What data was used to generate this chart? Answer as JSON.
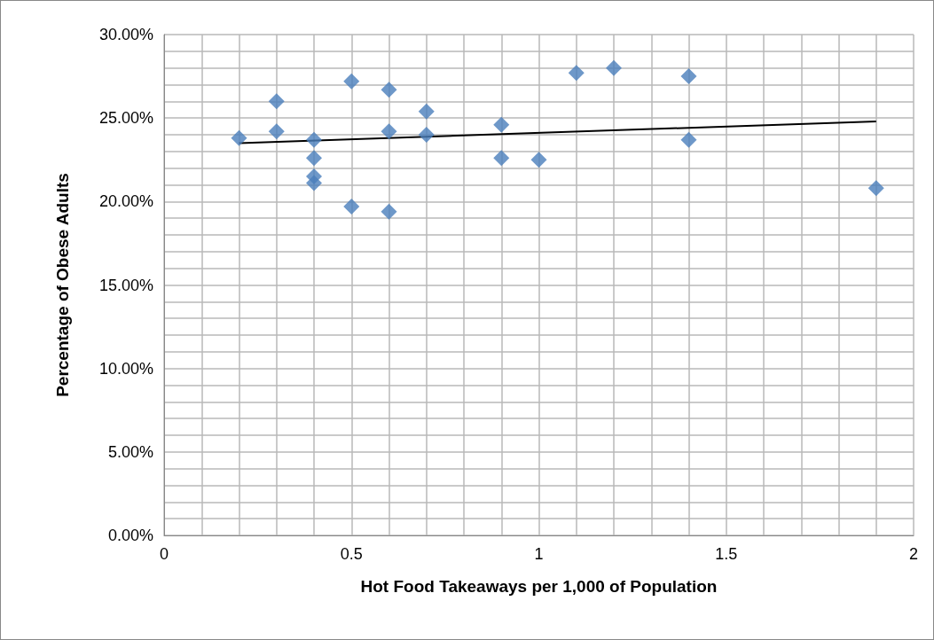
{
  "chart_data": {
    "type": "scatter",
    "xlabel": "Hot Food Takeaways per 1,000 of Population",
    "ylabel": "Percentage of Obese Adults",
    "series": [
      {
        "color": "#4a7ebb",
        "marker": "diamond",
        "x": [
          0.2,
          0.3,
          0.3,
          0.4,
          0.4,
          0.4,
          0.4,
          0.5,
          0.5,
          0.6,
          0.6,
          0.6,
          0.7,
          0.7,
          0.9,
          0.9,
          1.0,
          1.1,
          1.2,
          1.4,
          1.4,
          1.9
        ],
        "values": [
          23.8,
          26.0,
          24.2,
          23.7,
          22.6,
          21.5,
          21.1,
          27.2,
          19.7,
          26.7,
          24.2,
          19.4,
          25.4,
          24.0,
          24.6,
          22.6,
          22.5,
          27.7,
          28.0,
          27.5,
          23.7,
          20.8
        ]
      },
      {
        "type": "line",
        "color": "#000000",
        "marker": "none",
        "x": [
          0.2,
          1.9
        ],
        "values": [
          23.5,
          24.8
        ]
      }
    ],
    "xlim": [
      0,
      2
    ],
    "ylim": [
      0,
      30
    ],
    "xticks": [
      0,
      {
        "value": 0.1,
        "label": null
      },
      {
        "value": 0.2,
        "label": null
      },
      {
        "value": 0.3,
        "label": null
      },
      {
        "value": 0.4,
        "label": null
      },
      0.5,
      {
        "value": 0.6,
        "label": null
      },
      {
        "value": 0.7,
        "label": null
      },
      {
        "value": 0.8,
        "label": null
      },
      {
        "value": 0.9,
        "label": null
      },
      1,
      {
        "value": 1.1,
        "label": null
      },
      {
        "value": 1.2,
        "label": null
      },
      {
        "value": 1.3,
        "label": null
      },
      {
        "value": 1.4,
        "label": null
      },
      1.5,
      {
        "value": 1.6,
        "label": null
      },
      {
        "value": 1.7,
        "label": null
      },
      {
        "value": 1.8,
        "label": null
      },
      {
        "value": 1.9,
        "label": null
      },
      2
    ],
    "yticks": [
      {
        "value": 0,
        "label": "0.00%"
      },
      {
        "value": 1,
        "label": null
      },
      {
        "value": 2,
        "label": null
      },
      {
        "value": 3,
        "label": null
      },
      {
        "value": 4,
        "label": null
      },
      {
        "value": 5,
        "label": "5.00%"
      },
      {
        "value": 6,
        "label": null
      },
      {
        "value": 7,
        "label": null
      },
      {
        "value": 8,
        "label": null
      },
      {
        "value": 9,
        "label": null
      },
      {
        "value": 10,
        "label": "10.00%"
      },
      {
        "value": 11,
        "label": null
      },
      {
        "value": 12,
        "label": null
      },
      {
        "value": 13,
        "label": null
      },
      {
        "value": 14,
        "label": null
      },
      {
        "value": 15,
        "label": "15.00%"
      },
      {
        "value": 16,
        "label": null
      },
      {
        "value": 17,
        "label": null
      },
      {
        "value": 18,
        "label": null
      },
      {
        "value": 19,
        "label": null
      },
      {
        "value": 20,
        "label": "20.00%"
      },
      {
        "value": 21,
        "label": null
      },
      {
        "value": 22,
        "label": null
      },
      {
        "value": 23,
        "label": null
      },
      {
        "value": 24,
        "label": null
      },
      {
        "value": 25,
        "label": "25.00%"
      },
      {
        "value": 26,
        "label": null
      },
      {
        "value": 27,
        "label": null
      },
      {
        "value": 28,
        "label": null
      },
      {
        "value": 29,
        "label": null
      },
      {
        "value": 30,
        "label": "30.00%"
      }
    ],
    "grid": true
  }
}
